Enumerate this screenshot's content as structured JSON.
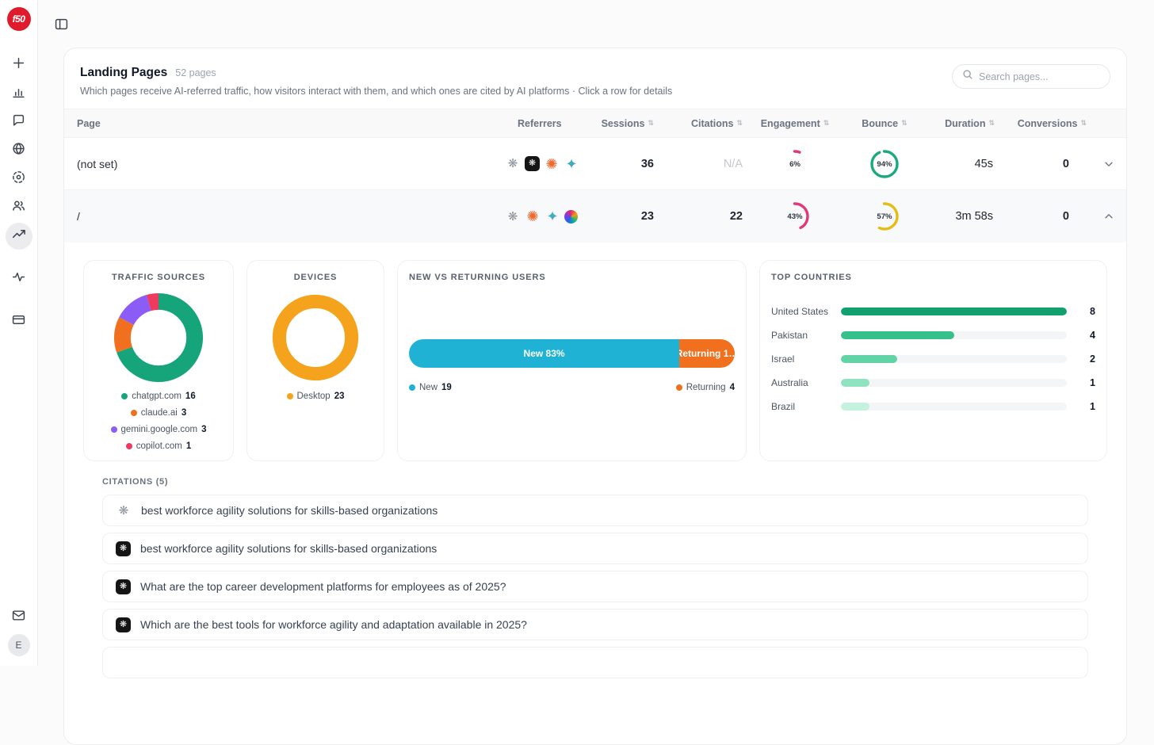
{
  "brand": {
    "logo_text": "f50",
    "logo_color": "#e01b2c"
  },
  "sidebar": {
    "icons": [
      "plus",
      "bar-chart",
      "chat",
      "globe",
      "scan-eye",
      "users",
      "trending-up",
      "activity",
      "credit-card"
    ],
    "active_icon": "trending-up",
    "bottom_icons": [
      "mail"
    ],
    "avatar_initial": "E"
  },
  "header": {
    "title": "Landing Pages",
    "page_count": "52 pages",
    "subtitle": "Which pages receive AI-referred traffic, how visitors interact with them, and which ones are cited by AI platforms · Click a row for details",
    "search_placeholder": "Search pages..."
  },
  "table": {
    "columns": [
      "Page",
      "Referrers",
      "Sessions",
      "Citations",
      "Engagement",
      "Bounce",
      "Duration",
      "Conversions"
    ],
    "rows": [
      {
        "page": "(not set)",
        "referrers": [
          "chatgpt",
          "chatgpt-app",
          "claude",
          "gemini"
        ],
        "sessions": "36",
        "citations": "N/A",
        "engagement": {
          "pct": 6,
          "label": "6%",
          "color": "#e0387a"
        },
        "bounce": {
          "pct": 94,
          "label": "94%",
          "color": "#1ba97d"
        },
        "duration": "45s",
        "conversions": "0",
        "state": "collapsed"
      },
      {
        "page": "/",
        "referrers": [
          "chatgpt",
          "claude",
          "gemini",
          "copilot"
        ],
        "sessions": "23",
        "citations": "22",
        "engagement": {
          "pct": 43,
          "label": "43%",
          "color": "#e0387a"
        },
        "bounce": {
          "pct": 57,
          "label": "57%",
          "color": "#e4bd14"
        },
        "duration": "3m 58s",
        "conversions": "0",
        "state": "expanded"
      }
    ]
  },
  "detail": {
    "traffic_sources": {
      "title": "TRAFFIC SOURCES",
      "slices": [
        {
          "label": "chatgpt.com",
          "value": 16,
          "color": "#16a57b"
        },
        {
          "label": "claude.ai",
          "value": 3,
          "color": "#f0701f"
        },
        {
          "label": "gemini.google.com",
          "value": 3,
          "color": "#8b5cf6"
        },
        {
          "label": "copilot.com",
          "value": 1,
          "color": "#ee3a5e"
        }
      ]
    },
    "devices": {
      "title": "DEVICES",
      "slices": [
        {
          "label": "Desktop",
          "value": 23,
          "color": "#f5a31c"
        }
      ]
    },
    "new_vs_returning": {
      "title": "NEW VS RETURNING USERS",
      "segments": [
        {
          "label": "New",
          "value": 19,
          "pct": 83,
          "bar_label": "New 83%",
          "color": "#1fb2d5"
        },
        {
          "label": "Returning",
          "value": 4,
          "pct": 17,
          "bar_label": "Returning 1…",
          "color": "#f1701e"
        }
      ]
    },
    "top_countries": {
      "title": "TOP COUNTRIES",
      "max": 8,
      "rows": [
        {
          "label": "United States",
          "value": 8,
          "color": "#12a06f"
        },
        {
          "label": "Pakistan",
          "value": 4,
          "color": "#36c08a"
        },
        {
          "label": "Israel",
          "value": 2,
          "color": "#62d3a4"
        },
        {
          "label": "Australia",
          "value": 1,
          "color": "#90e3c0"
        },
        {
          "label": "Brazil",
          "value": 1,
          "color": "#c4f2de"
        }
      ]
    },
    "citations": {
      "title": "CITATIONS (5)",
      "items": [
        {
          "icon": "chatgpt",
          "text": "best workforce agility solutions for skills-based organizations"
        },
        {
          "icon": "chatgpt-app",
          "text": "best workforce agility solutions for skills-based organizations"
        },
        {
          "icon": "chatgpt-app",
          "text": "What are the top career development platforms for employees as of 2025?"
        },
        {
          "icon": "chatgpt-app",
          "text": "Which are the best tools for workforce agility and adaptation available in 2025?"
        }
      ]
    }
  },
  "chart_data": [
    {
      "type": "pie",
      "title": "TRAFFIC SOURCES",
      "categories": [
        "chatgpt.com",
        "claude.ai",
        "gemini.google.com",
        "copilot.com"
      ],
      "values": [
        16,
        3,
        3,
        1
      ],
      "legend_position": "bottom"
    },
    {
      "type": "pie",
      "title": "DEVICES",
      "categories": [
        "Desktop"
      ],
      "values": [
        23
      ],
      "legend_position": "bottom"
    },
    {
      "type": "bar",
      "title": "NEW VS RETURNING USERS",
      "categories": [
        "New",
        "Returning"
      ],
      "values": [
        19,
        4
      ],
      "percent_labels": [
        "New 83%",
        "Returning 1…"
      ]
    },
    {
      "type": "bar",
      "title": "TOP COUNTRIES",
      "categories": [
        "United States",
        "Pakistan",
        "Israel",
        "Australia",
        "Brazil"
      ],
      "values": [
        8,
        4,
        2,
        1,
        1
      ],
      "xlim": [
        0,
        8
      ]
    }
  ]
}
